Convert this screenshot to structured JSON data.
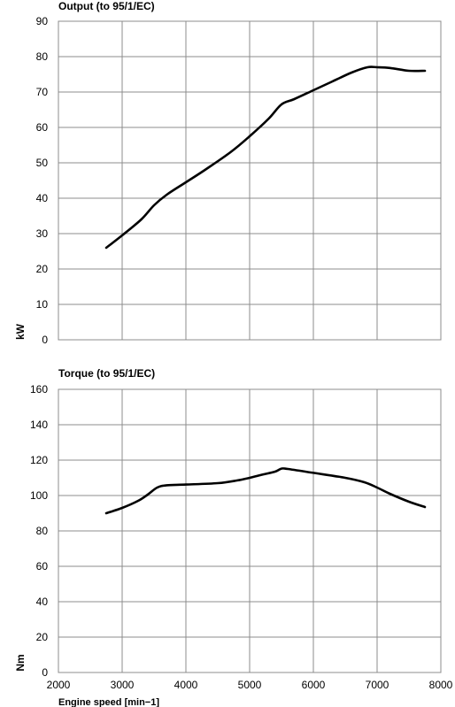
{
  "chart_data": [
    {
      "type": "line",
      "title": "Output (to 95/1/EC)",
      "ylabel": "kW",
      "xlabel": "",
      "xlim": [
        2000,
        8000
      ],
      "ylim": [
        0,
        90
      ],
      "x_ticks": [
        "2000",
        "3000",
        "4000",
        "5000",
        "6000",
        "7000",
        "8000"
      ],
      "y_ticks": [
        "0",
        "10",
        "20",
        "30",
        "40",
        "50",
        "60",
        "70",
        "80",
        "90"
      ],
      "grid": true,
      "x": [
        2750,
        3000,
        3300,
        3500,
        3700,
        4000,
        4300,
        4700,
        5000,
        5300,
        5500,
        5700,
        6000,
        6300,
        6600,
        6850,
        7000,
        7200,
        7500,
        7750
      ],
      "values": [
        26,
        29.5,
        34,
        38,
        41,
        44.5,
        48,
        53,
        57.5,
        62.5,
        66.5,
        68,
        70.5,
        73,
        75.5,
        77,
        77,
        76.8,
        76,
        76
      ]
    },
    {
      "type": "line",
      "title": "Torque (to 95/1/EC)",
      "ylabel": "Nm",
      "xlabel": "Engine speed [min−1]",
      "xlim": [
        2000,
        8000
      ],
      "ylim": [
        0,
        160
      ],
      "x_ticks": [
        "2000",
        "3000",
        "4000",
        "5000",
        "6000",
        "7000",
        "8000"
      ],
      "y_ticks": [
        "0",
        "20",
        "40",
        "60",
        "80",
        "100",
        "120",
        "140",
        "160"
      ],
      "grid": true,
      "x": [
        2750,
        3000,
        3250,
        3400,
        3550,
        3700,
        4000,
        4500,
        4800,
        5000,
        5200,
        5400,
        5500,
        5600,
        6000,
        6500,
        6800,
        7000,
        7200,
        7500,
        7750
      ],
      "values": [
        90,
        93,
        97,
        100.5,
        104.5,
        105.8,
        106.2,
        107,
        108.5,
        110,
        111.8,
        113.5,
        115.2,
        115,
        112.8,
        110,
        107.5,
        104.5,
        101,
        96.5,
        93.5
      ]
    }
  ]
}
